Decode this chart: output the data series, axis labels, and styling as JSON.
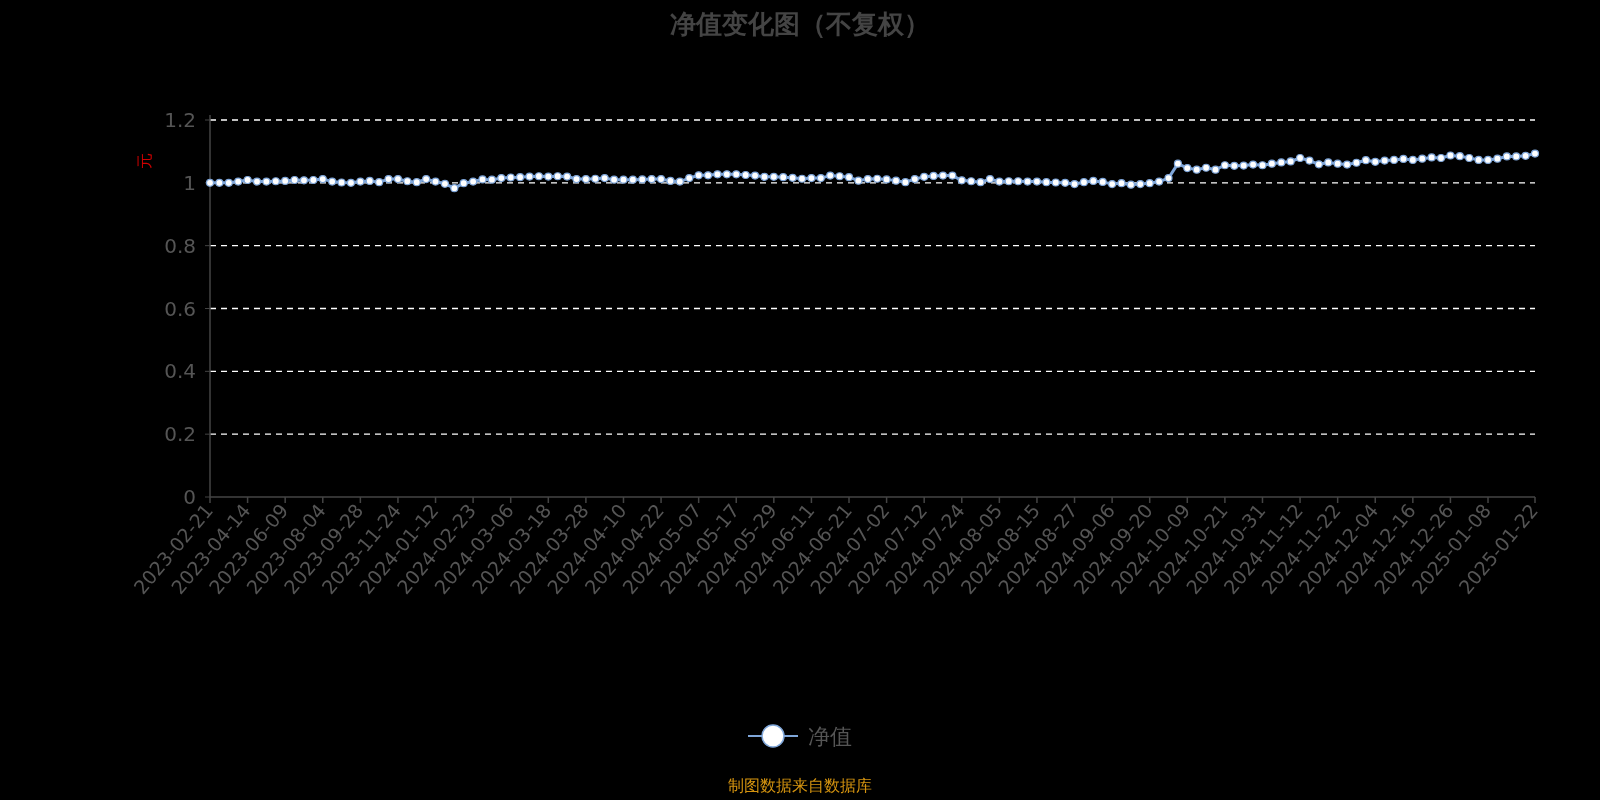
{
  "chart_data": {
    "type": "line",
    "title": "净值变化图（不复权）",
    "ylabel": "元",
    "categories": [
      "2023-02-21",
      null,
      null,
      null,
      "2023-04-14",
      null,
      null,
      null,
      "2023-06-09",
      null,
      null,
      null,
      "2023-08-04",
      null,
      null,
      null,
      "2023-09-28",
      null,
      null,
      null,
      "2023-11-24",
      null,
      null,
      null,
      "2024-01-12",
      null,
      null,
      null,
      "2024-02-23",
      null,
      null,
      null,
      "2024-03-06",
      null,
      null,
      null,
      "2024-03-18",
      null,
      null,
      null,
      "2024-03-28",
      null,
      null,
      null,
      "2024-04-10",
      null,
      null,
      null,
      "2024-04-22",
      null,
      null,
      null,
      "2024-05-07",
      null,
      null,
      null,
      "2024-05-17",
      null,
      null,
      null,
      "2024-05-29",
      null,
      null,
      null,
      "2024-06-11",
      null,
      null,
      null,
      "2024-06-21",
      null,
      null,
      null,
      "2024-07-02",
      null,
      null,
      null,
      "2024-07-12",
      null,
      null,
      null,
      "2024-07-24",
      null,
      null,
      null,
      "2024-08-05",
      null,
      null,
      null,
      "2024-08-15",
      null,
      null,
      null,
      "2024-08-27",
      null,
      null,
      null,
      "2024-09-06",
      null,
      null,
      null,
      "2024-09-20",
      null,
      null,
      null,
      "2024-10-09",
      null,
      null,
      null,
      "2024-10-21",
      null,
      null,
      null,
      "2024-10-31",
      null,
      null,
      null,
      "2024-11-12",
      null,
      null,
      null,
      "2024-11-22",
      null,
      null,
      null,
      "2024-12-04",
      null,
      null,
      null,
      "2024-12-16",
      null,
      null,
      null,
      "2024-12-26",
      null,
      null,
      null,
      "2025-01-08",
      null,
      null,
      null,
      null,
      "2025-01-22"
    ],
    "series": [
      {
        "name": "净值",
        "color": "#7fa6d9",
        "values": [
          1.0,
          1.0,
          1.0,
          1.004,
          1.009,
          1.004,
          1.004,
          1.005,
          1.006,
          1.009,
          1.008,
          1.009,
          1.012,
          1.004,
          1.001,
          1.0,
          1.004,
          1.006,
          1.002,
          1.012,
          1.012,
          1.005,
          1.002,
          1.012,
          1.004,
          0.997,
          0.983,
          0.999,
          1.004,
          1.011,
          1.01,
          1.015,
          1.017,
          1.018,
          1.02,
          1.021,
          1.02,
          1.021,
          1.02,
          1.012,
          1.012,
          1.013,
          1.015,
          1.01,
          1.01,
          1.01,
          1.011,
          1.012,
          1.012,
          1.006,
          1.004,
          1.015,
          1.024,
          1.024,
          1.027,
          1.027,
          1.027,
          1.025,
          1.023,
          1.019,
          1.019,
          1.018,
          1.016,
          1.013,
          1.015,
          1.015,
          1.023,
          1.021,
          1.018,
          1.007,
          1.012,
          1.013,
          1.011,
          1.007,
          1.002,
          1.012,
          1.019,
          1.022,
          1.023,
          1.023,
          1.008,
          1.005,
          1.002,
          1.012,
          1.004,
          1.005,
          1.005,
          1.004,
          1.004,
          1.002,
          1.001,
          1.0,
          0.996,
          1.002,
          1.006,
          1.003,
          0.996,
          0.999,
          0.994,
          0.996,
          0.999,
          1.004,
          1.015,
          1.061,
          1.047,
          1.042,
          1.048,
          1.042,
          1.056,
          1.054,
          1.055,
          1.058,
          1.056,
          1.061,
          1.065,
          1.068,
          1.079,
          1.071,
          1.059,
          1.065,
          1.061,
          1.058,
          1.064,
          1.072,
          1.067,
          1.071,
          1.073,
          1.076,
          1.073,
          1.077,
          1.081,
          1.079,
          1.087,
          1.085,
          1.079,
          1.073,
          1.073,
          1.077,
          1.084,
          1.084,
          1.086,
          1.093
        ]
      }
    ],
    "ylim": [
      0,
      1.2
    ],
    "yticks": [
      0,
      0.2,
      0.4,
      0.6,
      0.8,
      1,
      1.2
    ],
    "grid": "y",
    "legend": "bottom",
    "marker": "circle",
    "line_style": "solid",
    "annotations": [
      "制图数据来自数据库"
    ]
  }
}
